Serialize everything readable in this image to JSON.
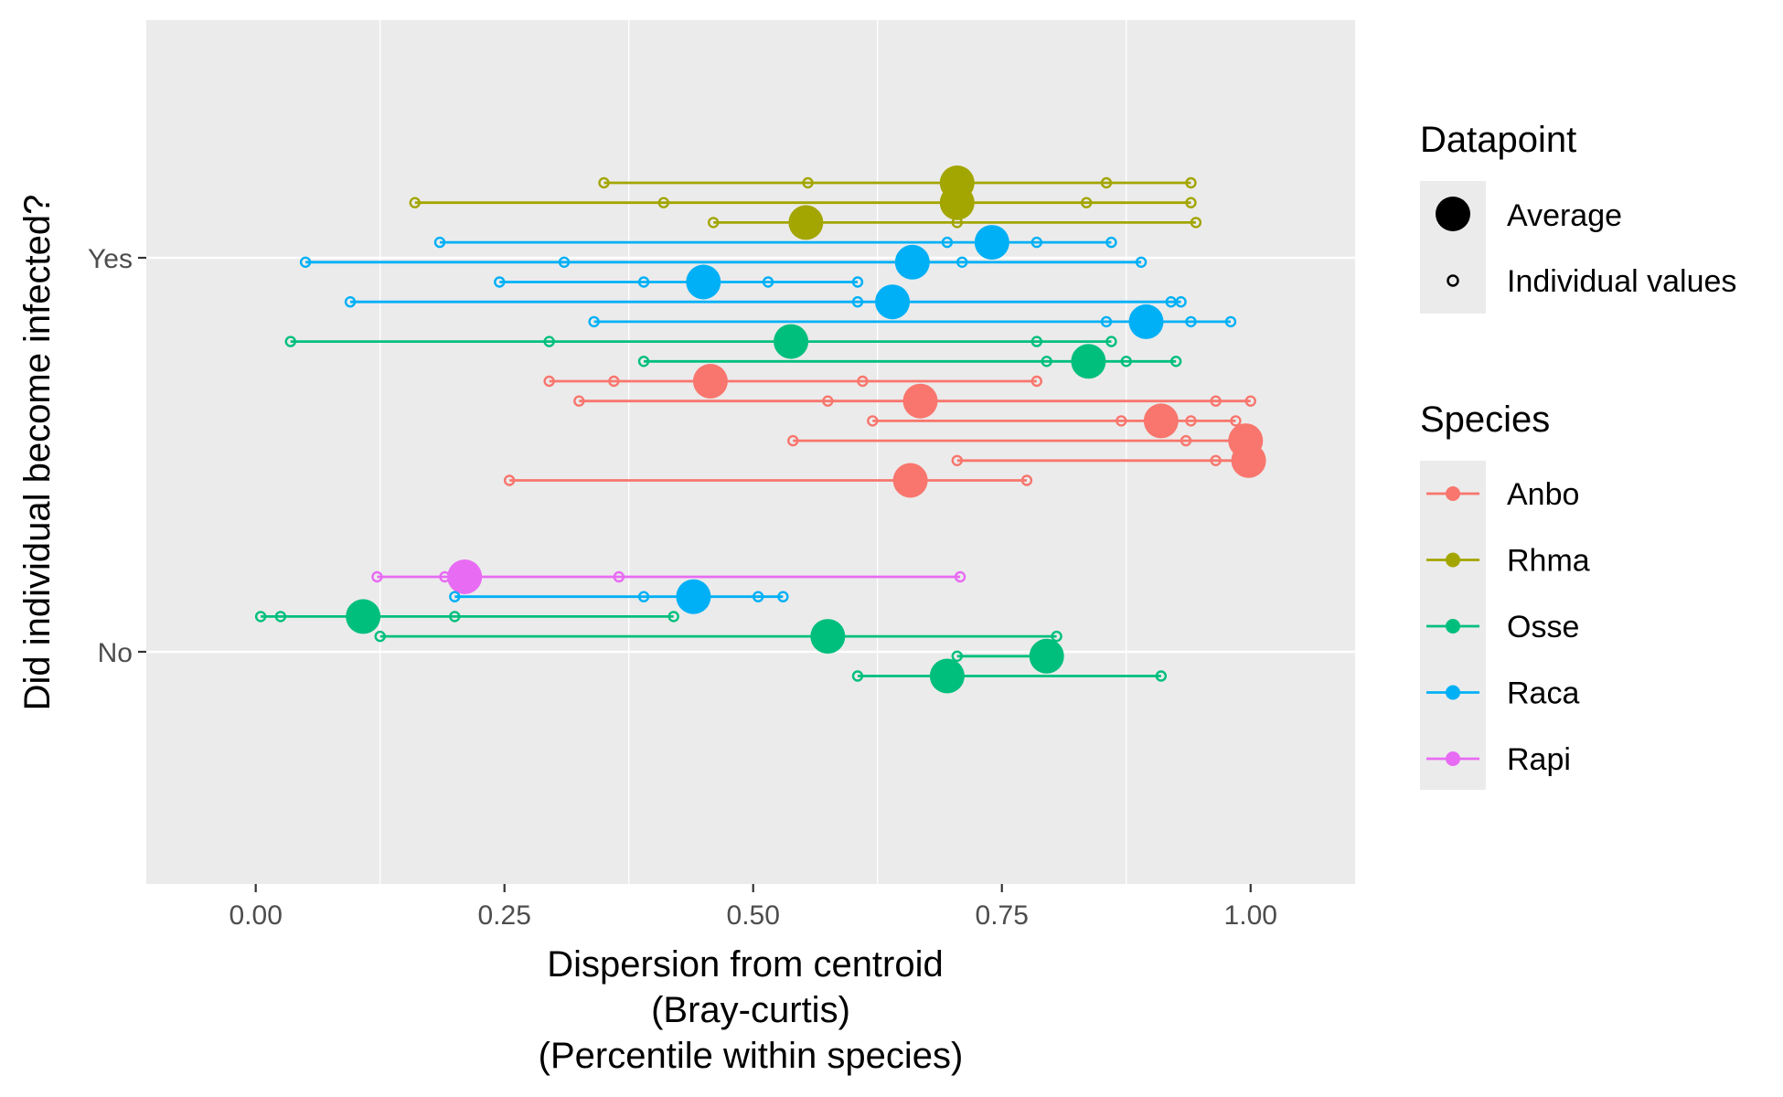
{
  "chart_data": {
    "type": "scatter",
    "xlabel": [
      "Dispersion from centroid",
      "(Bray-curtis)",
      "(Percentile within species)"
    ],
    "ylabel": "Did individual become infected?",
    "xlim": [
      -0.11,
      1.105
    ],
    "x_ticks": [
      0.0,
      0.25,
      0.5,
      0.75,
      1.0
    ],
    "x_tick_labels": [
      "0.00",
      "0.25",
      "0.50",
      "0.75",
      "1.00"
    ],
    "y_categories": [
      "No",
      "Yes"
    ],
    "grid": true,
    "legend_position": "right",
    "legends": {
      "datapoint": {
        "title": "Datapoint",
        "items": [
          "Average",
          "Individual values"
        ]
      },
      "species": {
        "title": "Species",
        "items": [
          "Anbo",
          "Rhma",
          "Osse",
          "Raca",
          "Rapi"
        ]
      }
    },
    "colors": {
      "Anbo": "#F8766D",
      "Rhma": "#A3A500",
      "Osse": "#00BF7D",
      "Raca": "#00B0F6",
      "Rapi": "#E76BF3"
    },
    "series": [
      {
        "category": "Yes",
        "rank": 1,
        "species": "Rhma",
        "average": 0.705,
        "individuals": [
          0.35,
          0.555,
          0.855,
          0.94
        ]
      },
      {
        "category": "Yes",
        "rank": 2,
        "species": "Rhma",
        "average": 0.705,
        "individuals": [
          0.16,
          0.41,
          0.835,
          0.94
        ]
      },
      {
        "category": "Yes",
        "rank": 3,
        "species": "Rhma",
        "average": 0.553,
        "individuals": [
          0.46,
          0.705,
          0.945
        ]
      },
      {
        "category": "Yes",
        "rank": 4,
        "species": "Raca",
        "average": 0.74,
        "individuals": [
          0.185,
          0.695,
          0.785,
          0.86
        ]
      },
      {
        "category": "Yes",
        "rank": 5,
        "species": "Raca",
        "average": 0.66,
        "individuals": [
          0.05,
          0.31,
          0.71,
          0.89
        ]
      },
      {
        "category": "Yes",
        "rank": 6,
        "species": "Raca",
        "average": 0.45,
        "individuals": [
          0.245,
          0.39,
          0.515,
          0.605
        ]
      },
      {
        "category": "Yes",
        "rank": 7,
        "species": "Raca",
        "average": 0.64,
        "individuals": [
          0.095,
          0.605,
          0.92,
          0.93
        ]
      },
      {
        "category": "Yes",
        "rank": 8,
        "species": "Raca",
        "average": 0.895,
        "individuals": [
          0.34,
          0.855,
          0.94,
          0.98
        ]
      },
      {
        "category": "Yes",
        "rank": 9,
        "species": "Osse",
        "average": 0.538,
        "individuals": [
          0.035,
          0.295,
          0.785,
          0.86
        ]
      },
      {
        "category": "Yes",
        "rank": 10,
        "species": "Osse",
        "average": 0.837,
        "individuals": [
          0.39,
          0.795,
          0.875,
          0.925
        ]
      },
      {
        "category": "Yes",
        "rank": 11,
        "species": "Anbo",
        "average": 0.457,
        "individuals": [
          0.295,
          0.36,
          0.61,
          0.785
        ]
      },
      {
        "category": "Yes",
        "rank": 12,
        "species": "Anbo",
        "average": 0.668,
        "individuals": [
          0.325,
          0.575,
          0.965,
          1.0
        ]
      },
      {
        "category": "Yes",
        "rank": 13,
        "species": "Anbo",
        "average": 0.91,
        "individuals": [
          0.62,
          0.87,
          0.94,
          0.985
        ]
      },
      {
        "category": "Yes",
        "rank": 14,
        "species": "Anbo",
        "average": 0.995,
        "individuals": [
          0.54,
          0.935,
          0.985
        ]
      },
      {
        "category": "Yes",
        "rank": 15,
        "species": "Anbo",
        "average": 0.998,
        "individuals": [
          0.705,
          0.965
        ]
      },
      {
        "category": "Yes",
        "rank": 16,
        "species": "Anbo",
        "average": 0.658,
        "individuals": [
          0.255,
          0.775
        ]
      },
      {
        "category": "No",
        "rank": 1,
        "species": "Rapi",
        "average": 0.21,
        "individuals": [
          0.122,
          0.19,
          0.365,
          0.708
        ]
      },
      {
        "category": "No",
        "rank": 2,
        "species": "Raca",
        "average": 0.44,
        "individuals": [
          0.2,
          0.39,
          0.505,
          0.53
        ]
      },
      {
        "category": "No",
        "rank": 3,
        "species": "Osse",
        "average": 0.108,
        "individuals": [
          0.005,
          0.025,
          0.2,
          0.42
        ]
      },
      {
        "category": "No",
        "rank": 4,
        "species": "Osse",
        "average": 0.575,
        "individuals": [
          0.125,
          0.805
        ]
      },
      {
        "category": "No",
        "rank": 5,
        "species": "Osse",
        "average": 0.795,
        "individuals": [
          0.705
        ]
      },
      {
        "category": "No",
        "rank": 6,
        "species": "Osse",
        "average": 0.695,
        "individuals": [
          0.605,
          0.91
        ]
      }
    ]
  }
}
